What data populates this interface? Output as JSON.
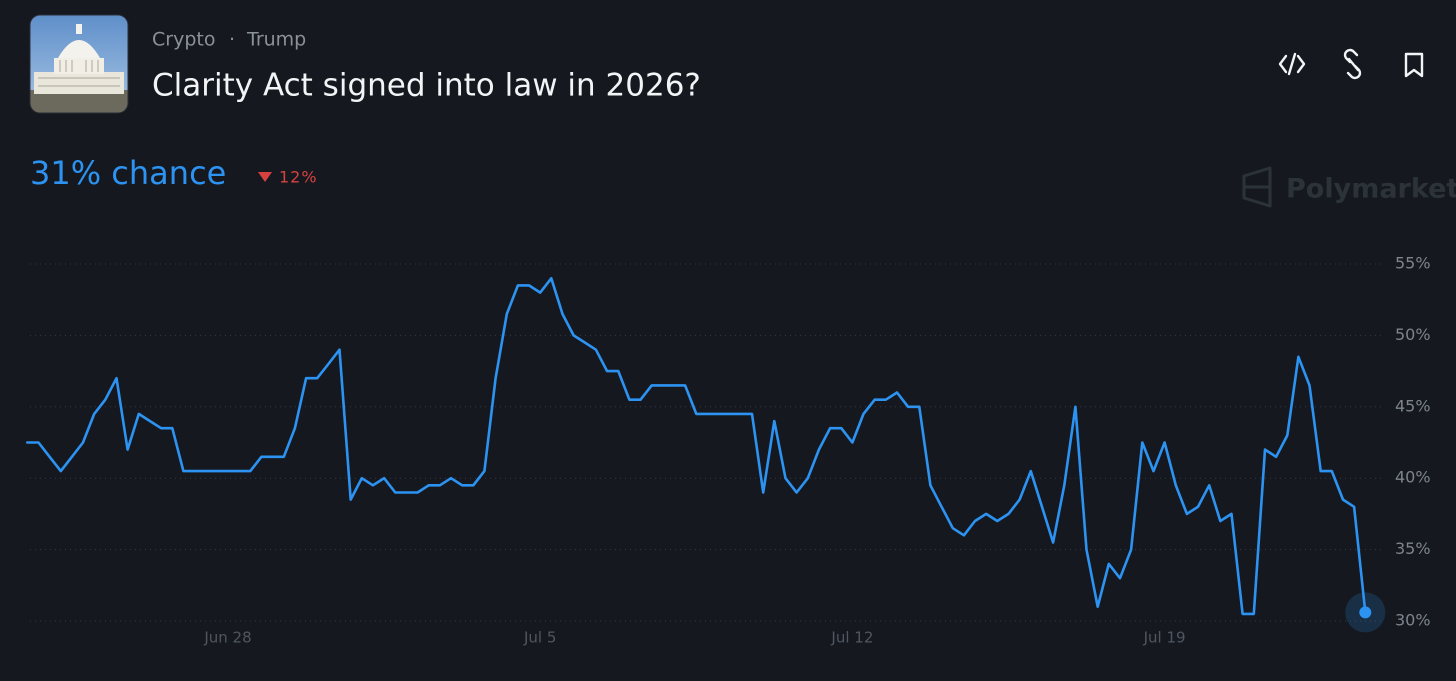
{
  "header": {
    "category": "Crypto",
    "separator": "·",
    "tag": "Trump",
    "title": "Clarity Act signed into law in 2026?",
    "chance": "31% chance",
    "change": "12%"
  },
  "watermark": "Polymarket",
  "chart_data": {
    "type": "line",
    "color": "#2d93f2",
    "grid": true,
    "categories": [
      null,
      null,
      null,
      null,
      null,
      null,
      null,
      null,
      null,
      null,
      null,
      null,
      null,
      null,
      null,
      null,
      null,
      null,
      "Jun 28",
      null,
      null,
      null,
      null,
      null,
      null,
      null,
      null,
      null,
      null,
      null,
      null,
      null,
      null,
      null,
      null,
      null,
      null,
      null,
      null,
      null,
      null,
      null,
      null,
      null,
      null,
      null,
      "Jul 5",
      null,
      null,
      null,
      null,
      null,
      null,
      null,
      null,
      null,
      null,
      null,
      null,
      null,
      null,
      null,
      null,
      null,
      null,
      null,
      null,
      null,
      null,
      null,
      null,
      null,
      null,
      null,
      "Jul 12",
      null,
      null,
      null,
      null,
      null,
      null,
      null,
      null,
      null,
      null,
      null,
      null,
      null,
      null,
      null,
      null,
      null,
      null,
      null,
      null,
      null,
      null,
      null,
      null,
      null,
      null,
      null,
      "Jul 19",
      null,
      null,
      null,
      null,
      null,
      null,
      null,
      null,
      null,
      null,
      null,
      null,
      null,
      null,
      null,
      null,
      null,
      null
    ],
    "values": [
      42.5,
      42.5,
      41.5,
      40.5,
      41.5,
      42.5,
      44.5,
      45.5,
      47,
      42,
      44.5,
      44,
      43.5,
      43.5,
      40.5,
      40.5,
      40.5,
      40.5,
      40.5,
      40.5,
      40.5,
      41.5,
      41.5,
      41.5,
      43.5,
      47,
      47,
      48,
      49,
      38.5,
      40,
      39.5,
      40,
      39,
      39,
      39,
      39.5,
      39.5,
      40,
      39.5,
      39.5,
      40.5,
      47,
      51.5,
      53.5,
      53.5,
      53,
      54,
      51.5,
      50,
      49.5,
      49,
      47.5,
      47.5,
      45.5,
      45.5,
      46.5,
      46.5,
      46.5,
      46.5,
      44.5,
      44.5,
      44.5,
      44.5,
      44.5,
      44.5,
      39,
      44,
      40,
      39,
      40,
      42,
      43.5,
      43.5,
      42.5,
      44.5,
      45.5,
      45.5,
      46,
      45,
      45,
      39.5,
      38,
      36.5,
      36,
      37,
      37.5,
      37,
      37.5,
      38.5,
      40.5,
      38,
      35.5,
      39.5,
      45,
      35,
      31,
      34,
      33,
      35,
      42.5,
      40.5,
      42.5,
      39.5,
      37.5,
      38,
      39.5,
      37,
      37.5,
      30.5,
      30.5,
      42,
      41.5,
      43,
      48.5,
      46.5,
      40.5,
      40.5,
      38.5,
      38,
      30.6
    ],
    "ylim": [
      30,
      55
    ],
    "yticks": [
      {
        "value": 30,
        "label": "30%"
      },
      {
        "value": 35,
        "label": "35%"
      },
      {
        "value": 40,
        "label": "40%"
      },
      {
        "value": 45,
        "label": "45%"
      },
      {
        "value": 50,
        "label": "50%"
      },
      {
        "value": 55,
        "label": "55%"
      }
    ]
  }
}
